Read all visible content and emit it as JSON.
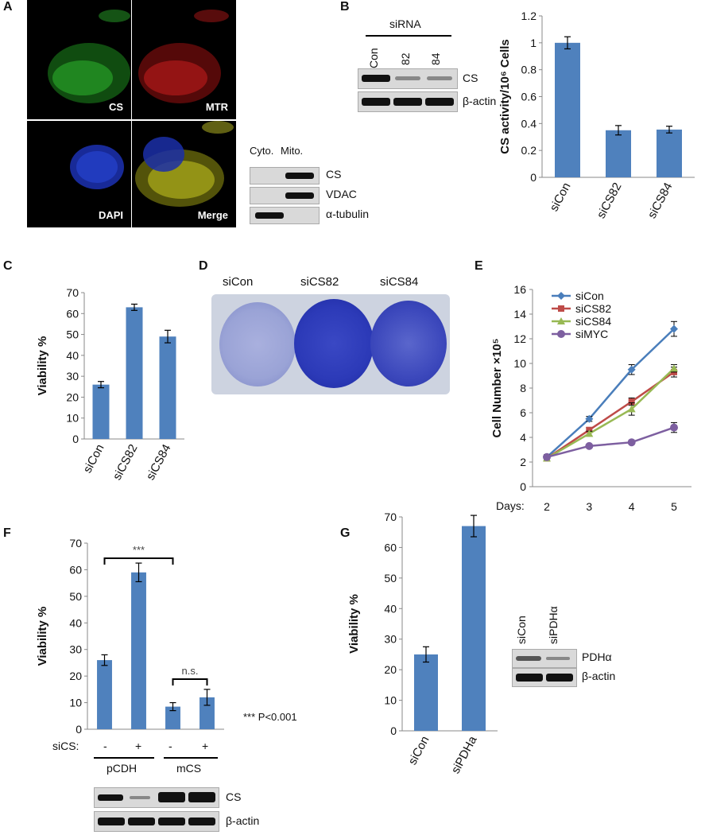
{
  "panel_letters": {
    "a": "A",
    "b": "B",
    "c": "C",
    "d": "D",
    "e": "E",
    "f": "F",
    "g": "G"
  },
  "panel_a": {
    "micro_labels": [
      "CS",
      "MTR",
      "DAPI",
      "Merge"
    ],
    "fraction_headers": [
      "Cyto.",
      "Mito."
    ],
    "blot_labels": [
      "CS",
      "VDAC",
      "α-tubulin"
    ]
  },
  "panel_b_blot": {
    "header": "siRNA",
    "lanes": [
      "Con",
      "82",
      "84"
    ],
    "labels": [
      "CS",
      "β-actin"
    ]
  },
  "panel_f_blot": {
    "sics_label": "siCS:",
    "signs": [
      "-",
      "+",
      "-",
      "+"
    ],
    "groups": [
      "pCDH",
      "mCS"
    ],
    "labels": [
      "CS",
      "β-actin"
    ],
    "sig_main": "***",
    "sig_ns": "n.s.",
    "pnote": "*** P<0.001"
  },
  "panel_g_blot": {
    "lanes": [
      "siCon",
      "siPDHα"
    ],
    "labels": [
      "PDHα",
      "β-actin"
    ]
  },
  "panel_d": {
    "labels": [
      "siCon",
      "siCS82",
      "siCS84"
    ]
  },
  "panel_e_days_label": "Days:",
  "colors": {
    "bar": "#4f81bd",
    "siCon": "#4a7ebb",
    "siCS82": "#be4b48",
    "siCS84": "#98b954",
    "siMYC": "#7d5fa0"
  },
  "chart_data": [
    {
      "id": "B",
      "type": "bar",
      "ylabel": "CS activity/10⁶ Cells",
      "categories": [
        "siCon",
        "siCS82",
        "siCS84"
      ],
      "values": [
        1.0,
        0.35,
        0.355
      ],
      "errors": [
        0.045,
        0.035,
        0.025
      ],
      "ylim": [
        0,
        1.2
      ],
      "ticks": [
        "0",
        "0.2",
        "0.4",
        "0.6",
        "0.8",
        "1",
        "1.2"
      ]
    },
    {
      "id": "C",
      "type": "bar",
      "ylabel": "Viability %",
      "categories": [
        "siCon",
        "siCS82",
        "siCS84"
      ],
      "values": [
        26,
        63,
        49
      ],
      "errors": [
        1.5,
        1.5,
        3
      ],
      "ylim": [
        0,
        70
      ],
      "ticks": [
        "0",
        "10",
        "20",
        "30",
        "40",
        "50",
        "60",
        "70"
      ]
    },
    {
      "id": "E",
      "type": "line",
      "ylabel": "Cell Number ×10⁵",
      "x": [
        2,
        3,
        4,
        5
      ],
      "xticks": [
        "2",
        "3",
        "4",
        "5"
      ],
      "ylim": [
        0,
        16
      ],
      "ticks": [
        "0",
        "2",
        "4",
        "6",
        "8",
        "10",
        "12",
        "14",
        "16"
      ],
      "legend": "top-left",
      "series": [
        {
          "name": "siCon",
          "values": [
            2.4,
            5.5,
            9.5,
            12.8
          ],
          "errors": [
            0.2,
            0.2,
            0.4,
            0.6
          ],
          "marker": "diamond"
        },
        {
          "name": "siCS82",
          "values": [
            2.3,
            4.6,
            6.9,
            9.3
          ],
          "errors": [
            0.2,
            0.2,
            0.3,
            0.4
          ],
          "marker": "square"
        },
        {
          "name": "siCS84",
          "values": [
            2.3,
            4.3,
            6.3,
            9.6
          ],
          "errors": [
            0.2,
            0.2,
            0.5,
            0.3
          ],
          "marker": "triangle"
        },
        {
          "name": "siMYC",
          "values": [
            2.4,
            3.3,
            3.6,
            4.8
          ],
          "errors": [
            0.1,
            0.1,
            0.1,
            0.4
          ],
          "marker": "circle"
        }
      ]
    },
    {
      "id": "F",
      "type": "bar",
      "ylabel": "Viability %",
      "categories": [
        "pCDH -",
        "pCDH +",
        "mCS -",
        "mCS +"
      ],
      "values": [
        26,
        59,
        8.5,
        12
      ],
      "errors": [
        2,
        3.5,
        1.5,
        3
      ],
      "ylim": [
        0,
        70
      ],
      "ticks": [
        "0",
        "10",
        "20",
        "30",
        "40",
        "50",
        "60",
        "70"
      ]
    },
    {
      "id": "G",
      "type": "bar",
      "ylabel": "Viability %",
      "categories": [
        "siCon",
        "siPDHa"
      ],
      "values": [
        25,
        67
      ],
      "errors": [
        2.5,
        3.5
      ],
      "ylim": [
        0,
        70
      ],
      "ticks": [
        "0",
        "10",
        "20",
        "30",
        "40",
        "50",
        "60",
        "70"
      ]
    }
  ]
}
